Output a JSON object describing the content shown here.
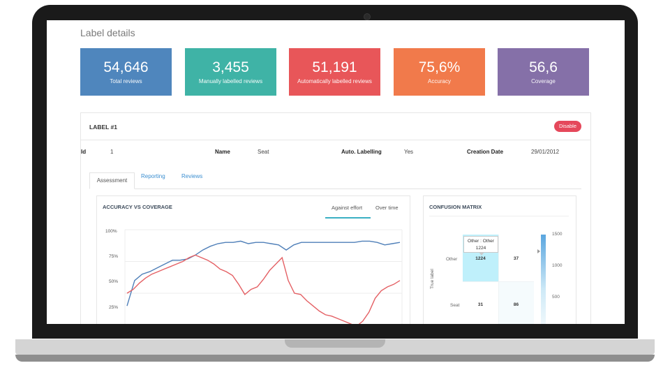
{
  "page": {
    "title": "Label details"
  },
  "kpis": [
    {
      "value": "54,646",
      "label": "Total reviews",
      "color": "#4f86bd"
    },
    {
      "value": "3,455",
      "label": "Manually labelled reviews",
      "color": "#3fb3a6"
    },
    {
      "value": "51,191",
      "label": "Automatically labelled reviews",
      "color": "#e85659"
    },
    {
      "value": "75,6%",
      "label": "Accuracy",
      "color": "#f17a4b"
    },
    {
      "value": "56,6",
      "label": "Coverage",
      "color": "#8570a8"
    }
  ],
  "label": {
    "title": "LABEL #1",
    "disable": "Disable",
    "fields": [
      {
        "key": "Id",
        "value": "1"
      },
      {
        "key": "Name",
        "value": "Seat"
      },
      {
        "key": "Auto. Labelling",
        "value": "Yes"
      },
      {
        "key": "Creation Date",
        "value": "29/01/2012"
      }
    ]
  },
  "tabs": [
    "Assessment",
    "Reporting",
    "Reviews"
  ],
  "accuracy_card": {
    "title": "ACCURACY VS COVERAGE",
    "toggle": [
      "Against effort",
      "Over time"
    ]
  },
  "confusion": {
    "title": "CONFUSION MATRIX",
    "ylabel": "True label",
    "rows": [
      "Other",
      "Seat"
    ],
    "cells": [
      "1224",
      "37",
      "31",
      "86"
    ],
    "tooltip_line1": "Other : Other",
    "tooltip_line2": "1224",
    "scale": [
      "1500",
      "1000",
      "500"
    ]
  },
  "chart_data": {
    "type": "line",
    "ylim": [
      0,
      100
    ],
    "y_ticks": [
      "100%",
      "75%",
      "50%",
      "25%"
    ],
    "series": [
      {
        "color": "#4f7fb8",
        "values": [
          40,
          60,
          65,
          67,
          70,
          73,
          76,
          76,
          77,
          80,
          84,
          87,
          89,
          90,
          90,
          91,
          89,
          90,
          90,
          89,
          88,
          84,
          88,
          90,
          90,
          90,
          90,
          90,
          90,
          90,
          90,
          91,
          91,
          90,
          88,
          89,
          90
        ]
      },
      {
        "color": "#e46064",
        "values": [
          50,
          53,
          58,
          62,
          65,
          67,
          69,
          71,
          73,
          75,
          78,
          80,
          78,
          76,
          73,
          69,
          67,
          64,
          57,
          49,
          53,
          55,
          61,
          68,
          73,
          78,
          60,
          50,
          49,
          44,
          40,
          36,
          33,
          32,
          30,
          28,
          26,
          24,
          28,
          35,
          46,
          52,
          55,
          57,
          60
        ]
      }
    ]
  }
}
